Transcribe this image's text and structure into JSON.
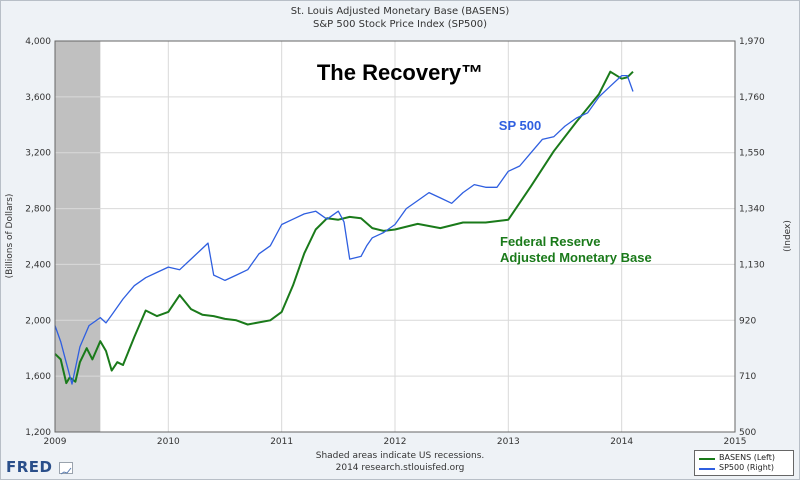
{
  "header": {
    "title_line1": "St. Louis Adjusted Monetary Base (BASENS)",
    "title_line2": "S&P 500 Stock Price Index (SP500)"
  },
  "footer": {
    "line1": "Shaded areas indicate US recessions.",
    "line2": "2014 research.stlouisfed.org",
    "brand": "FRED"
  },
  "legend": {
    "items": [
      {
        "label": "BASENS (Left)",
        "color": "#1a7a1a"
      },
      {
        "label": "SP500 (Right)",
        "color": "#2f5fe0"
      }
    ]
  },
  "colors": {
    "basens": "#1a7a1a",
    "sp500": "#2f5fe0",
    "recession": "#c0c0c0",
    "plot_bg": "#ffffff",
    "grid": "#d9d9d9"
  },
  "chart_data": {
    "type": "line",
    "title": "The Recovery™",
    "left_axis": {
      "label": "(Billions of Dollars)",
      "ylim": [
        1200,
        4000
      ],
      "ticks": [
        "1,200",
        "1,600",
        "2,000",
        "2,400",
        "2,800",
        "3,200",
        "3,600",
        "4,000"
      ]
    },
    "right_axis": {
      "label": "(Index)",
      "ylim": [
        500,
        1970
      ],
      "ticks": [
        "500",
        "710",
        "920",
        "1,130",
        "1,340",
        "1,550",
        "1,760",
        "1,970"
      ]
    },
    "x_axis": {
      "xlim": [
        2009,
        2015
      ],
      "ticks": [
        "2009",
        "2010",
        "2011",
        "2012",
        "2013",
        "2014",
        "2015"
      ]
    },
    "recession": {
      "start": 2009.0,
      "end": 2009.4
    },
    "grid": true,
    "annotations": [
      {
        "text": "SP 500",
        "color": "#2f5fe0"
      },
      {
        "text": "Federal Reserve",
        "color": "#1a7a1a"
      },
      {
        "text": "Adjusted Monetary Base",
        "color": "#1a7a1a"
      }
    ],
    "series": [
      {
        "name": "BASENS (Left)",
        "axis": "left",
        "x": [
          2009.0,
          2009.05,
          2009.1,
          2009.13,
          2009.18,
          2009.22,
          2009.28,
          2009.33,
          2009.4,
          2009.45,
          2009.5,
          2009.55,
          2009.6,
          2009.7,
          2009.8,
          2009.9,
          2010.0,
          2010.1,
          2010.2,
          2010.3,
          2010.4,
          2010.5,
          2010.6,
          2010.7,
          2010.8,
          2010.9,
          2011.0,
          2011.1,
          2011.2,
          2011.3,
          2011.4,
          2011.5,
          2011.6,
          2011.7,
          2011.8,
          2011.9,
          2012.0,
          2012.2,
          2012.4,
          2012.6,
          2012.8,
          2013.0,
          2013.2,
          2013.4,
          2013.6,
          2013.8,
          2013.9,
          2014.0,
          2014.05,
          2014.1
        ],
        "values": [
          1760,
          1720,
          1550,
          1590,
          1560,
          1700,
          1800,
          1720,
          1850,
          1780,
          1640,
          1700,
          1680,
          1880,
          2070,
          2030,
          2060,
          2180,
          2080,
          2040,
          2030,
          2010,
          2000,
          1970,
          1985,
          2000,
          2060,
          2250,
          2480,
          2650,
          2730,
          2720,
          2740,
          2730,
          2660,
          2640,
          2650,
          2690,
          2660,
          2700,
          2700,
          2720,
          2960,
          3210,
          3420,
          3620,
          3780,
          3730,
          3740,
          3780
        ]
      },
      {
        "name": "SP500 (Right)",
        "axis": "right",
        "x": [
          2009.0,
          2009.05,
          2009.1,
          2009.15,
          2009.18,
          2009.22,
          2009.3,
          2009.4,
          2009.45,
          2009.5,
          2009.6,
          2009.7,
          2009.8,
          2009.9,
          2010.0,
          2010.1,
          2010.2,
          2010.3,
          2010.35,
          2010.4,
          2010.45,
          2010.5,
          2010.6,
          2010.7,
          2010.8,
          2010.9,
          2011.0,
          2011.1,
          2011.2,
          2011.3,
          2011.4,
          2011.5,
          2011.55,
          2011.6,
          2011.7,
          2011.75,
          2011.8,
          2011.9,
          2012.0,
          2012.1,
          2012.2,
          2012.3,
          2012.4,
          2012.5,
          2012.6,
          2012.7,
          2012.8,
          2012.9,
          2013.0,
          2013.1,
          2013.2,
          2013.3,
          2013.4,
          2013.5,
          2013.6,
          2013.7,
          2013.8,
          2013.9,
          2014.0,
          2014.05,
          2014.1
        ],
        "values": [
          900,
          840,
          760,
          680,
          740,
          820,
          900,
          930,
          910,
          940,
          1000,
          1050,
          1080,
          1100,
          1120,
          1110,
          1150,
          1190,
          1210,
          1090,
          1080,
          1070,
          1090,
          1110,
          1170,
          1200,
          1280,
          1300,
          1320,
          1330,
          1300,
          1330,
          1290,
          1150,
          1160,
          1200,
          1230,
          1250,
          1280,
          1340,
          1370,
          1400,
          1380,
          1360,
          1400,
          1430,
          1420,
          1420,
          1480,
          1500,
          1550,
          1600,
          1610,
          1650,
          1680,
          1700,
          1760,
          1800,
          1840,
          1840,
          1780
        ]
      }
    ]
  }
}
